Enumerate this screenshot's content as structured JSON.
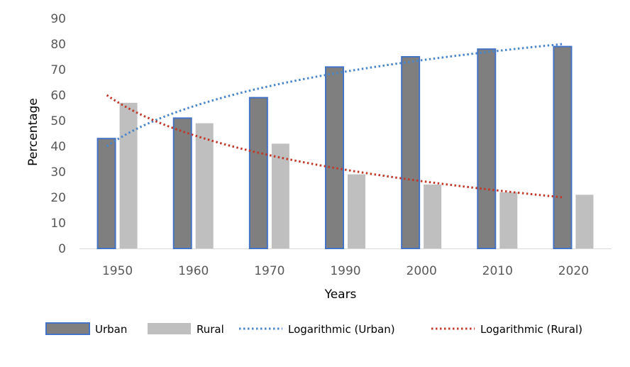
{
  "chart_data": {
    "type": "bar",
    "title": "",
    "xlabel": "Years",
    "ylabel": "Percentage",
    "categories": [
      "1950",
      "1960",
      "1970",
      "1990",
      "2000",
      "2010",
      "2020"
    ],
    "ylim": [
      0,
      90
    ],
    "yticks": [
      0,
      10,
      20,
      30,
      40,
      50,
      60,
      70,
      80,
      90
    ],
    "grid": false,
    "legend_position": "bottom",
    "series": [
      {
        "name": "Urban",
        "values": [
          43,
          51,
          59,
          71,
          75,
          78,
          79
        ],
        "color": "#7f7f7f",
        "border": "#4472c4"
      },
      {
        "name": "Rural",
        "values": [
          57,
          49,
          41,
          29,
          25,
          22,
          21
        ],
        "color": "#bfbfbf"
      }
    ],
    "trendlines": [
      {
        "name": "Logarithmic (Urban)",
        "series": "Urban",
        "kind": "logarithmic",
        "start": 40,
        "end": 80,
        "color": "#4a86c8"
      },
      {
        "name": "Logarithmic (Rural)",
        "series": "Rural",
        "kind": "logarithmic",
        "start": 60,
        "end": 20,
        "color": "#c0392b"
      }
    ]
  }
}
